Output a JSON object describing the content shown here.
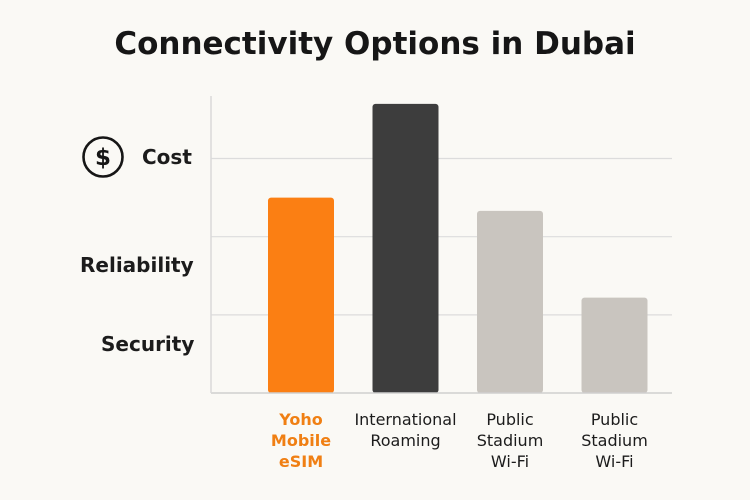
{
  "chart_data": {
    "type": "bar",
    "title": "Connectivity Options in Dubai",
    "categories": [
      "Yoho Mobile eSIM",
      "International Roaming",
      "Public Stadium Wi-Fi",
      "Public Stadium Wi-Fi"
    ],
    "category_lines": [
      [
        "Yoho",
        "Mobile",
        "eSIM"
      ],
      [
        "International",
        "Roaming"
      ],
      [
        "Public",
        "Stadium",
        "Wi-Fi"
      ],
      [
        "Public",
        "Stadium",
        "Wi-Fi"
      ]
    ],
    "values": [
      2.5,
      3.7,
      2.33,
      1.22
    ],
    "colors": [
      "#fb7f13",
      "#3d3d3d",
      "#c9c5bf",
      "#c9c5bf"
    ],
    "highlight_index": 0,
    "ylabels": [
      {
        "text": "Cost",
        "level": 3.0,
        "icon": "dollar-circle-icon"
      },
      {
        "text": "Reliability",
        "level": 2.0
      },
      {
        "text": "Security",
        "level": 1.0
      }
    ],
    "ylim": [
      0,
      3.8
    ],
    "gridlines": [
      1,
      2,
      3
    ],
    "grid": true,
    "legend": "none"
  }
}
